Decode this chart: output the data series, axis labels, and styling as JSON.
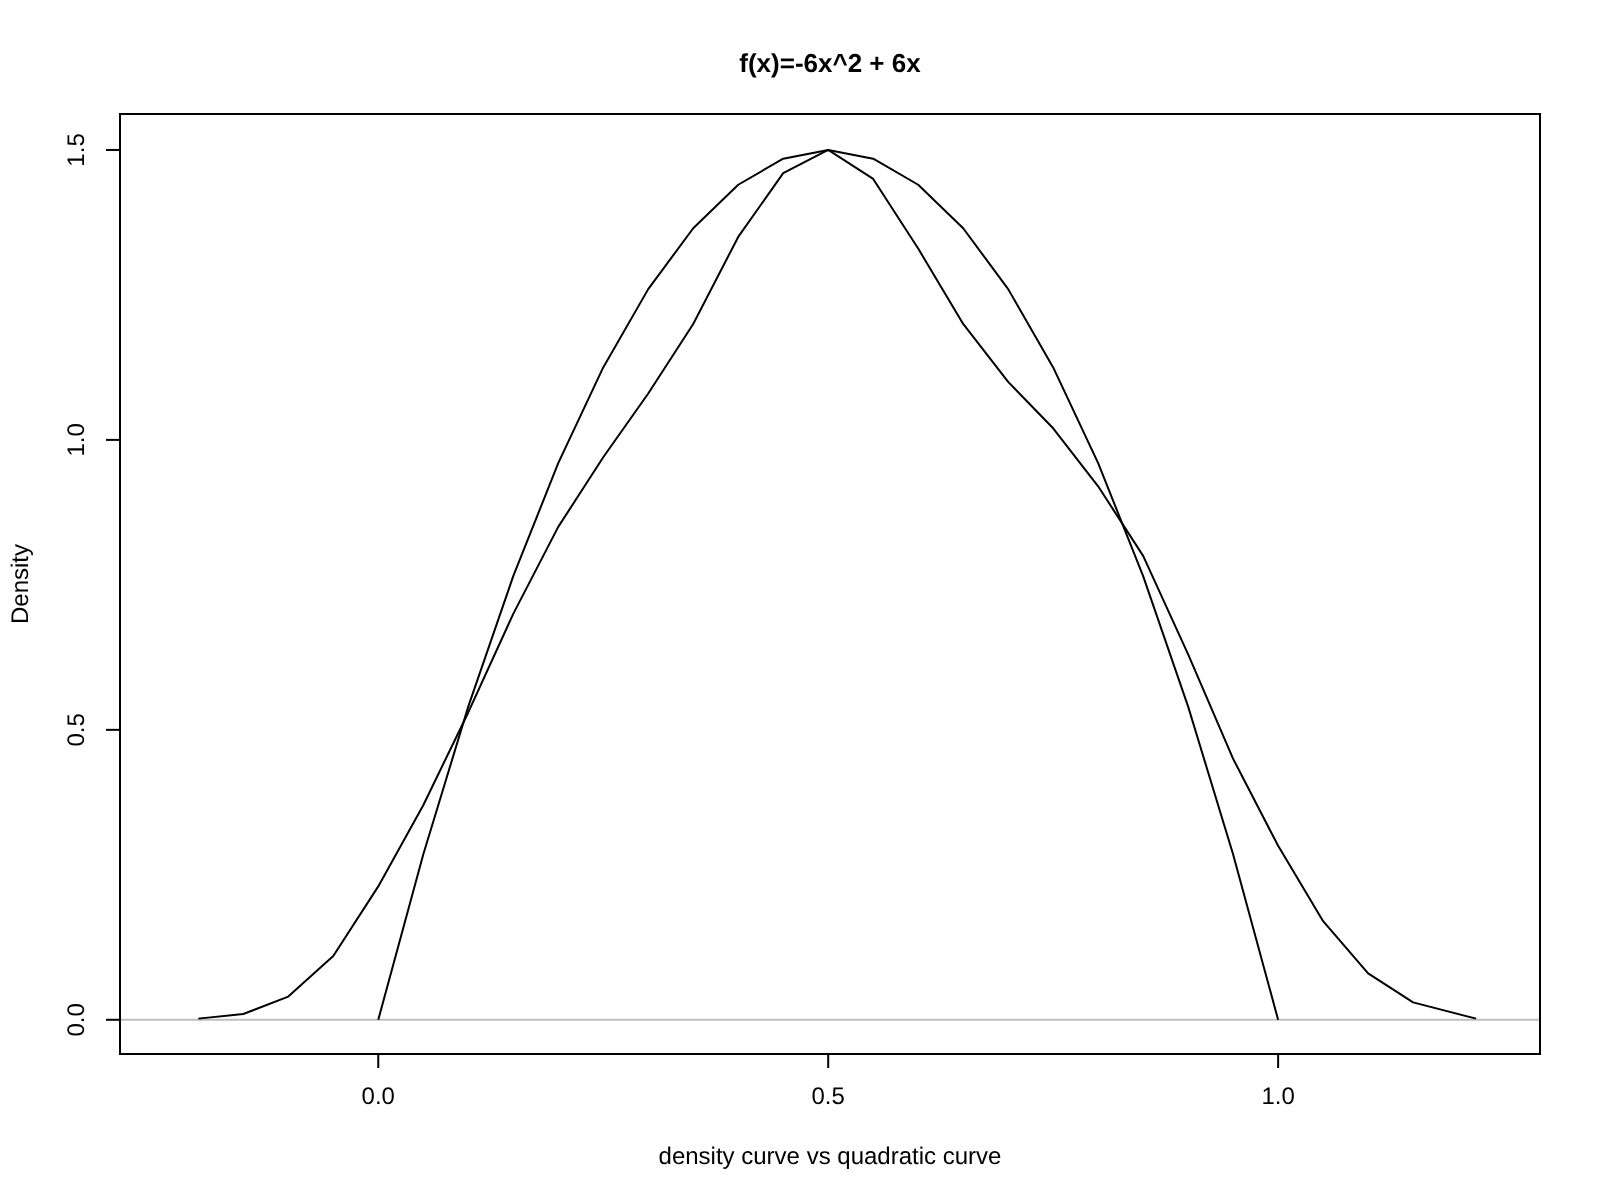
{
  "chart_data": {
    "type": "line",
    "title": "f(x)=-6x^2 + 6x",
    "xlabel": "density curve vs quadratic curve",
    "ylabel": "Density",
    "xlim": [
      -0.287,
      1.291
    ],
    "ylim": [
      -0.059,
      1.562
    ],
    "xticks": [
      {
        "value": 0,
        "label": "0.0"
      },
      {
        "value": 0.5,
        "label": "0.5"
      },
      {
        "value": 1,
        "label": "1.0"
      }
    ],
    "yticks": [
      {
        "value": 0,
        "label": "0.0"
      },
      {
        "value": 0.5,
        "label": "0.5"
      },
      {
        "value": 1,
        "label": "1.0"
      },
      {
        "value": 1.5,
        "label": "1.5"
      }
    ],
    "grid": false,
    "marker": "none",
    "line_style": "solid",
    "ref_lines": [
      {
        "axis": "y",
        "value": 0,
        "color": "#bebebe"
      }
    ],
    "series": [
      {
        "color": "#000000",
        "x": [
          -0.2,
          -0.15,
          -0.1,
          -0.05,
          0,
          0.05,
          0.1,
          0.15,
          0.2,
          0.25,
          0.3,
          0.35,
          0.4,
          0.45,
          0.5,
          0.55,
          0.6,
          0.65,
          0.7,
          0.75,
          0.8,
          0.85,
          0.9,
          0.95,
          1,
          1.05,
          1.1,
          1.15,
          1.22
        ],
        "values": [
          0.002,
          0.01,
          0.04,
          0.11,
          0.23,
          0.37,
          0.53,
          0.7,
          0.85,
          0.97,
          1.08,
          1.2,
          1.35,
          1.46,
          1.5,
          1.45,
          1.33,
          1.2,
          1.1,
          1.02,
          0.92,
          0.8,
          0.63,
          0.45,
          0.3,
          0.17,
          0.08,
          0.03,
          0.002
        ]
      },
      {
        "color": "#000000",
        "x": [
          0,
          0.05,
          0.1,
          0.15,
          0.2,
          0.25,
          0.3,
          0.35,
          0.4,
          0.45,
          0.5,
          0.55,
          0.6,
          0.65,
          0.7,
          0.75,
          0.8,
          0.85,
          0.9,
          0.95,
          1
        ],
        "values": [
          0,
          0.285,
          0.54,
          0.765,
          0.96,
          1.125,
          1.26,
          1.365,
          1.44,
          1.485,
          1.5,
          1.485,
          1.44,
          1.365,
          1.26,
          1.125,
          0.96,
          0.765,
          0.54,
          0.285,
          0
        ]
      }
    ]
  }
}
